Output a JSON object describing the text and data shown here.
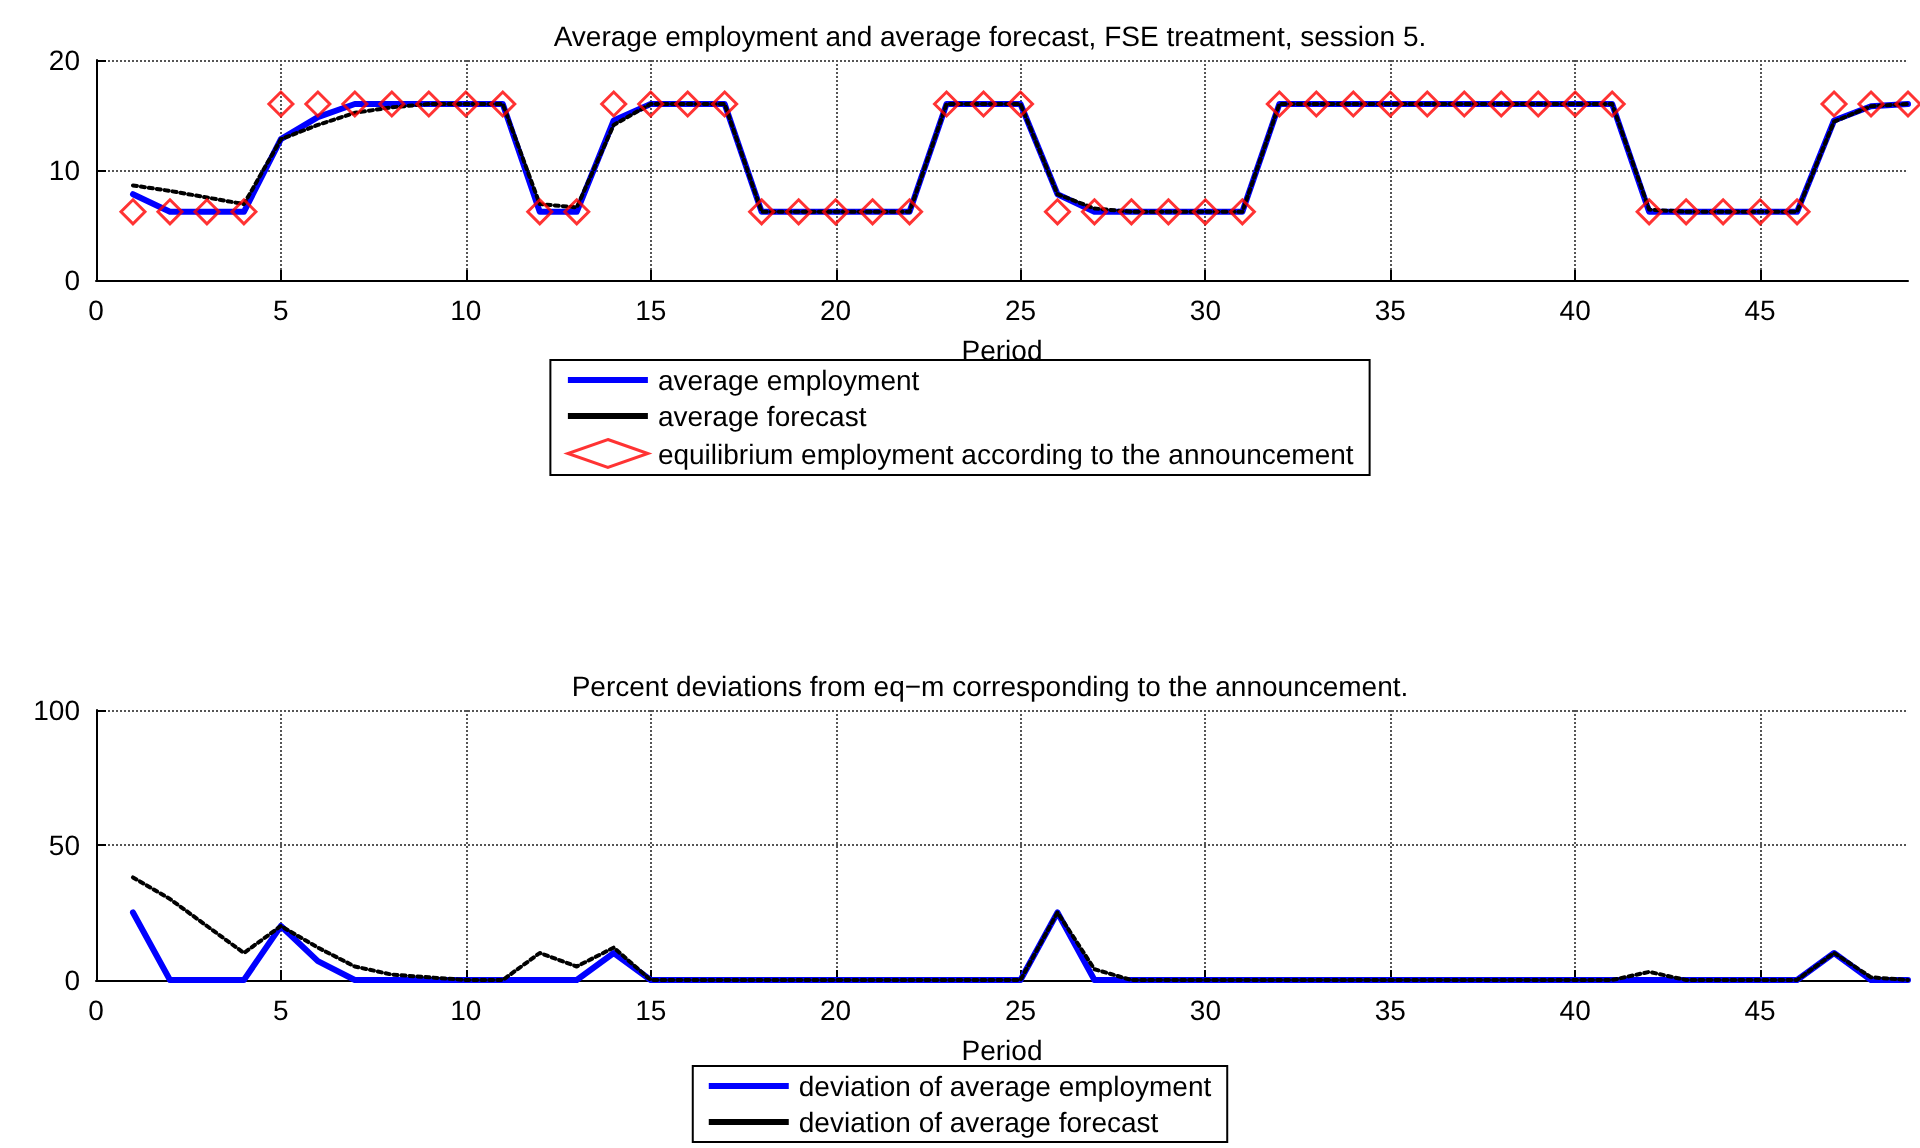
{
  "chart_data": [
    {
      "type": "line",
      "title": "Average employment and average forecast, FSE treatment, session 5.",
      "xlabel": "Period",
      "x": [
        1,
        2,
        3,
        4,
        5,
        6,
        7,
        8,
        9,
        10,
        11,
        12,
        13,
        14,
        15,
        16,
        17,
        18,
        19,
        20,
        21,
        22,
        23,
        24,
        25,
        26,
        27,
        28,
        29,
        30,
        31,
        32,
        33,
        34,
        35,
        36,
        37,
        38,
        39,
        40,
        41,
        42,
        43,
        44,
        45,
        46,
        47,
        48,
        49
      ],
      "xlim": [
        0,
        49
      ],
      "xticks": [
        0,
        5,
        10,
        15,
        20,
        25,
        30,
        35,
        40,
        45
      ],
      "ylim": [
        0,
        20
      ],
      "yticks": [
        0,
        10,
        20
      ],
      "grid": true,
      "legend": "bottom",
      "series": [
        {
          "name": "average employment",
          "color": "#0000ff",
          "marker": "none",
          "line_style": "solid",
          "values": [
            7.8,
            6.2,
            6.2,
            6.2,
            12.8,
            14.8,
            16,
            16,
            16,
            16,
            16,
            6.2,
            6.2,
            14.5,
            16,
            16,
            16,
            6.2,
            6.2,
            6.2,
            6.2,
            6.2,
            16,
            16,
            16,
            7.8,
            6.2,
            6.2,
            6.2,
            6.2,
            6.2,
            16,
            16,
            16,
            16,
            16,
            16,
            16,
            16,
            16,
            16,
            6.2,
            6.2,
            6.2,
            6.2,
            6.2,
            14.5,
            15.8,
            16
          ]
        },
        {
          "name": "average forecast",
          "color": "#000000",
          "marker": "none",
          "line_style": "dotted",
          "values": [
            8.6,
            8.1,
            7.5,
            6.9,
            12.8,
            14.1,
            15.2,
            15.7,
            16,
            16,
            16,
            6.9,
            6.6,
            14.1,
            16,
            16,
            16,
            6.2,
            6.2,
            6.2,
            6.2,
            6.2,
            16,
            16,
            16,
            7.8,
            6.5,
            6.2,
            6.2,
            6.2,
            6.2,
            16,
            16,
            16,
            16,
            16,
            16,
            16,
            16,
            16,
            16,
            6.4,
            6.2,
            6.2,
            6.2,
            6.2,
            14.4,
            15.8,
            16
          ]
        },
        {
          "name": "equilibrium employment according to the announcement",
          "type": "scatter",
          "color": "#ff0000",
          "marker": "diamond",
          "values": [
            6.2,
            6.2,
            6.2,
            6.2,
            16,
            16,
            16,
            16,
            16,
            16,
            16,
            6.2,
            6.2,
            16,
            16,
            16,
            16,
            6.2,
            6.2,
            6.2,
            6.2,
            6.2,
            16,
            16,
            16,
            6.2,
            6.2,
            6.2,
            6.2,
            6.2,
            6.2,
            16,
            16,
            16,
            16,
            16,
            16,
            16,
            16,
            16,
            16,
            6.2,
            6.2,
            6.2,
            6.2,
            6.2,
            16,
            16,
            16
          ]
        }
      ]
    },
    {
      "type": "line",
      "title": "Percent deviations from eq−m corresponding to the announcement.",
      "xlabel": "Period",
      "x": [
        1,
        2,
        3,
        4,
        5,
        6,
        7,
        8,
        9,
        10,
        11,
        12,
        13,
        14,
        15,
        16,
        17,
        18,
        19,
        20,
        21,
        22,
        23,
        24,
        25,
        26,
        27,
        28,
        29,
        30,
        31,
        32,
        33,
        34,
        35,
        36,
        37,
        38,
        39,
        40,
        41,
        42,
        43,
        44,
        45,
        46,
        47,
        48,
        49
      ],
      "xlim": [
        0,
        49
      ],
      "xticks": [
        0,
        5,
        10,
        15,
        20,
        25,
        30,
        35,
        40,
        45
      ],
      "ylim": [
        0,
        100
      ],
      "yticks": [
        0,
        50,
        100
      ],
      "grid": true,
      "legend": "bottom",
      "series": [
        {
          "name": "deviation of average employment",
          "color": "#0000ff",
          "marker": "none",
          "line_style": "solid",
          "values": [
            25,
            0,
            0,
            0,
            20,
            7,
            0,
            0,
            0,
            0,
            0,
            0,
            0,
            10,
            0,
            0,
            0,
            0,
            0,
            0,
            0,
            0,
            0,
            0,
            0,
            25,
            0,
            0,
            0,
            0,
            0,
            0,
            0,
            0,
            0,
            0,
            0,
            0,
            0,
            0,
            0,
            0,
            0,
            0,
            0,
            0,
            10,
            0,
            0
          ]
        },
        {
          "name": "deviation of average forecast",
          "color": "#000000",
          "marker": "none",
          "line_style": "dotted",
          "values": [
            38,
            30,
            20,
            10,
            20,
            12,
            5,
            2,
            1,
            0,
            0,
            10,
            5,
            12,
            0,
            0,
            0,
            0,
            0,
            0,
            0,
            0,
            0,
            0,
            0,
            25,
            4,
            0,
            0,
            0,
            0,
            0,
            0,
            0,
            0,
            0,
            0,
            0,
            0,
            0,
            0,
            3,
            0,
            0,
            0,
            0,
            10,
            1,
            0
          ]
        }
      ]
    }
  ]
}
